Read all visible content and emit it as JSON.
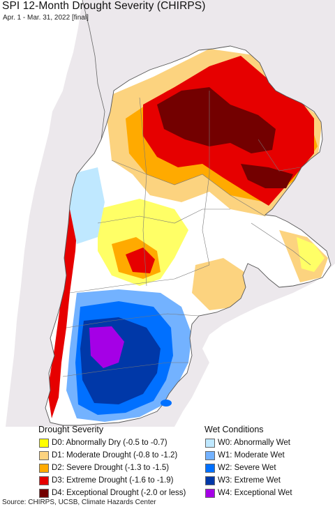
{
  "title": "SPI 12-Month Drought Severity (CHIRPS)",
  "subtitle": "Apr. 1 - Mar. 31, 2022 [final]",
  "drought_legend": {
    "heading": "Drought Severity",
    "items": [
      {
        "label": "D0: Abnormally Dry (-0.5 to -0.7)",
        "color": "#ffff00"
      },
      {
        "label": "D1: Moderate Drought (-0.8 to -1.2)",
        "color": "#fcd37f"
      },
      {
        "label": "D2: Severe Drought (-1.3 to -1.5)",
        "color": "#ffaa00"
      },
      {
        "label": "D3: Extreme Drought (-1.6 to -1.9)",
        "color": "#e60000"
      },
      {
        "label": "D4: Exceptional Drought (-2.0 or less)",
        "color": "#730000"
      }
    ]
  },
  "wet_legend": {
    "heading": "Wet Conditions",
    "items": [
      {
        "label": "W0: Abnormally Wet",
        "color": "#bfe8ff"
      },
      {
        "label": "W1: Moderate Wet",
        "color": "#73b2ff"
      },
      {
        "label": "W2: Severe Wet",
        "color": "#0070ff"
      },
      {
        "label": "W3: Extreme Wet",
        "color": "#0038a8"
      },
      {
        "label": "W4: Exceptional Wet",
        "color": "#a500e6"
      }
    ]
  },
  "map_colors": {
    "land_outside": "#ece8ec",
    "ocean": "#ffffff",
    "no_anomaly": "#ffffff",
    "border": "#555555"
  },
  "source": "Source: CHIRPS, UCSB, Climate Hazards Center"
}
